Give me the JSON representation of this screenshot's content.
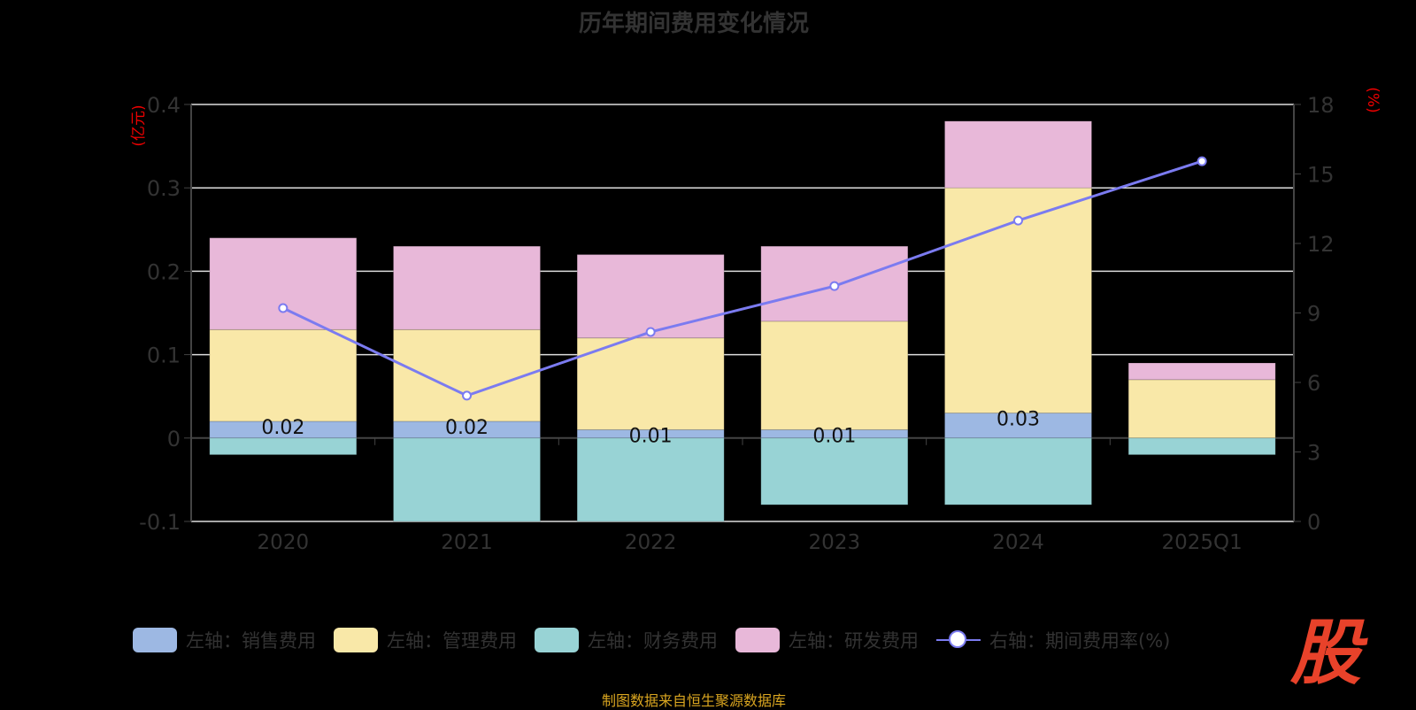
{
  "chart_data": {
    "type": "bar",
    "title": "历年期间费用变化情况",
    "categories": [
      "2020",
      "2021",
      "2022",
      "2023",
      "2024",
      "2025Q1"
    ],
    "left_axis": {
      "label": "(亿元)",
      "ylim": [
        -0.1,
        0.4
      ],
      "ticks": [
        "0.4",
        "0.3",
        "0.2",
        "0.1",
        "0",
        "-0.1"
      ]
    },
    "right_axis": {
      "label": "(%)",
      "ylim": [
        0,
        18
      ],
      "ticks": [
        "18",
        "15",
        "12",
        "9",
        "6",
        "3",
        "0"
      ]
    },
    "series": [
      {
        "name": "左轴：销售费用",
        "type": "bar",
        "color": "#9db8e3",
        "values": [
          0.02,
          0.02,
          0.01,
          0.01,
          0.03,
          0
        ],
        "labels": [
          "0.02",
          "0.02",
          "0.01",
          "0.01",
          "0.03",
          ""
        ]
      },
      {
        "name": "左轴：管理费用",
        "type": "bar",
        "color": "#f9e8a8",
        "values": [
          0.11,
          0.11,
          0.11,
          0.13,
          0.27,
          0.07
        ]
      },
      {
        "name": "左轴：财务费用",
        "type": "bar",
        "color": "#98d3d5",
        "values": [
          -0.02,
          -0.1,
          -0.1,
          -0.08,
          -0.08,
          -0.02
        ]
      },
      {
        "name": "左轴：研发费用",
        "type": "bar",
        "color": "#e8b8d9",
        "values": [
          0.11,
          0.1,
          0.1,
          0.09,
          0.08,
          0.02
        ]
      },
      {
        "name": "右轴：期间费用率(%)",
        "type": "line",
        "color": "#7b7bf0",
        "values": [
          9.21,
          5.43,
          8.18,
          10.16,
          12.99,
          15.55
        ]
      }
    ],
    "legend_position": "bottom",
    "grid": true
  },
  "footer": {
    "source": "制图数据来自恒生聚源数据库",
    "logo": "股"
  }
}
